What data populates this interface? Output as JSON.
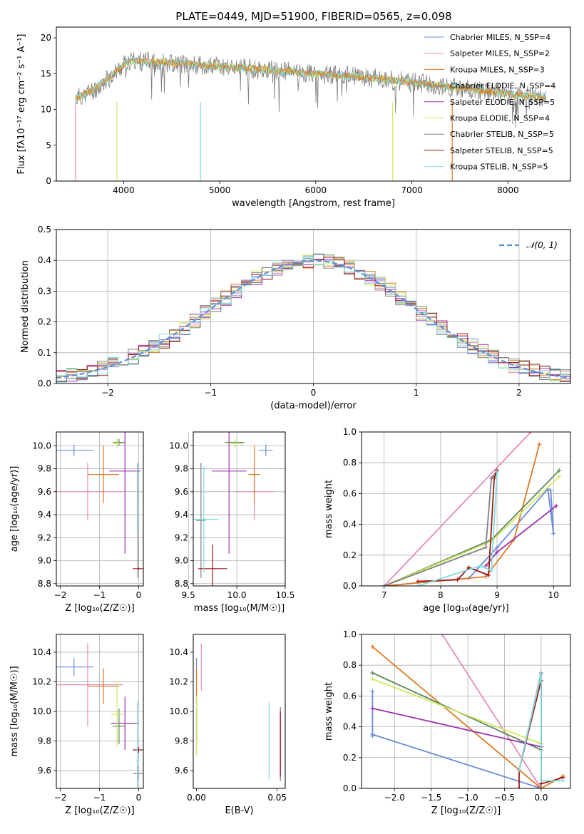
{
  "colors": {
    "series": [
      "#5B8BD8",
      "#E68BB8",
      "#E07B2A",
      "#F07020",
      "#A030B8",
      "#C8E070",
      "#707070",
      "#A01818",
      "#80D8D8"
    ],
    "model": [
      "#6A8CDA",
      "#E58BBC",
      "#E07A24",
      "#5E8A5A",
      "#9A32B0",
      "#D0E860",
      "#808080",
      "#A01818",
      "#80DDDD"
    ],
    "normal": "#5B8FD8"
  },
  "chart_data": [
    {
      "type": "line",
      "title": "PLATE=0449, MJD=51900, FIBERID=0565, z=0.098",
      "xlabel": "wavelength [Angstrom, rest frame]",
      "ylabel": "Flux [fλ10⁻¹⁷ erg cm⁻² s⁻¹ A⁻¹]",
      "xlim": [
        3300,
        8650
      ],
      "ylim": [
        0,
        21.5
      ],
      "xticks": [
        "4000",
        "5000",
        "6000",
        "7000",
        "8000"
      ],
      "yticks": [
        "0",
        "5",
        "10",
        "15",
        "20"
      ],
      "legend_position": "top-right",
      "legend": [
        "Chabrier MILES, N_SSP=4",
        "Salpeter MILES, N_SSP=2",
        "Kroupa MILES, N_SSP=3",
        "Chabrier ELODIE, N_SSP=4",
        "Salpeter ELODIE, N_SSP=5",
        "Kroupa ELODIE, N_SSP=4",
        "Chabrier STELIB, N_SSP=5",
        "Salpeter STELIB, N_SSP=5",
        "Kroupa STELIB, N_SSP=5"
      ],
      "continuum": {
        "x": [
          3500,
          3700,
          3900,
          4050,
          4500,
          5000,
          5500,
          6000,
          6500,
          7000,
          7500,
          8000,
          8400
        ],
        "y": [
          11.5,
          12.8,
          15.0,
          16.8,
          16.5,
          16.0,
          15.5,
          15.0,
          14.5,
          13.8,
          13.0,
          12.2,
          11.6
        ]
      }
    },
    {
      "type": "histogram",
      "xlabel": "(data-model)/error",
      "ylabel": "Normed distribution",
      "xlim": [
        -2.5,
        2.5
      ],
      "ylim": [
        0,
        0.5
      ],
      "xticks": [
        "−2",
        "−1",
        "0",
        "1",
        "2"
      ],
      "yticks": [
        "0.0",
        "0.1",
        "0.2",
        "0.3",
        "0.4",
        "0.5"
      ],
      "legend_position": "top-right",
      "legend": [
        "𝒩(0, 1)"
      ],
      "bin_width": 0.1
    },
    {
      "type": "scatter",
      "xlabel": "Z [log₁₀(Z/Z☉)]",
      "ylabel": "age  [log₁₀(age/yr)]",
      "xlim": [
        -2.1,
        0.12
      ],
      "ylim": [
        8.78,
        10.12
      ],
      "xticks": [
        "−2",
        "−1",
        "0"
      ],
      "yticks": [
        "8.8",
        "9.0",
        "9.2",
        "9.4",
        "9.6",
        "9.8",
        "10.0"
      ],
      "points": [
        {
          "x": -1.65,
          "y": 9.96,
          "xerr": 0.5,
          "yerr": 0.05
        },
        {
          "x": -1.3,
          "y": 9.6,
          "xerr": 0.9,
          "yerr": 0.25
        },
        {
          "x": -0.9,
          "y": 9.75,
          "xerr": 0.4,
          "yerr": 0.25
        },
        {
          "x": -0.5,
          "y": 10.03,
          "xerr": 0.15,
          "yerr": 0.03
        },
        {
          "x": -0.35,
          "y": 9.78,
          "xerr": 0.4,
          "yerr": 0.72
        },
        {
          "x": -0.55,
          "y": 10.02,
          "xerr": 0.15,
          "yerr": 0.04
        },
        {
          "x": -0.02,
          "y": 9.35,
          "xerr": 0.02,
          "yerr": 0.5
        },
        {
          "x": 0.0,
          "y": 8.93,
          "xerr": 0.15,
          "yerr": 0.01
        },
        {
          "x": -0.03,
          "y": 9.55,
          "xerr": 0.02,
          "yerr": 0.3
        }
      ]
    },
    {
      "type": "scatter",
      "xlabel": "mass [log₁₀(M/M☉)]",
      "ylabel": "",
      "xlim": [
        9.55,
        10.5
      ],
      "ylim": [
        8.78,
        10.12
      ],
      "xticks": [
        "9.5",
        "10.0",
        "10.5"
      ],
      "yticks": [
        "8.8",
        "9.0",
        "9.2",
        "9.4",
        "9.6",
        "9.8",
        "10.0"
      ],
      "points": [
        {
          "x": 10.3,
          "y": 9.96,
          "xerr": 0.07,
          "yerr": 0.05
        },
        {
          "x": 10.18,
          "y": 9.6,
          "xerr": 0.2,
          "yerr": 0.25
        },
        {
          "x": 10.18,
          "y": 9.75,
          "xerr": 0.06,
          "yerr": 0.25
        },
        {
          "x": 9.98,
          "y": 10.03,
          "xerr": 0.1,
          "yerr": 0.03
        },
        {
          "x": 9.92,
          "y": 9.78,
          "xerr": 0.18,
          "yerr": 0.72
        },
        {
          "x": 9.98,
          "y": 10.02,
          "xerr": 0.08,
          "yerr": 0.04
        },
        {
          "x": 9.63,
          "y": 9.35,
          "xerr": 0.05,
          "yerr": 0.5
        },
        {
          "x": 9.75,
          "y": 8.93,
          "xerr": 0.15,
          "yerr": 0.21
        },
        {
          "x": 9.66,
          "y": 9.36,
          "xerr": 0.15,
          "yerr": 0.46
        }
      ]
    },
    {
      "type": "line",
      "xlabel": "age  [log₁₀(age/yr)]",
      "ylabel": "mass weight",
      "xlim": [
        6.6,
        10.3
      ],
      "ylim": [
        0,
        1.0
      ],
      "xticks": [
        "7",
        "8",
        "9",
        "10"
      ],
      "yticks": [
        "0.0",
        "0.2",
        "0.4",
        "0.6",
        "0.8",
        "1.0"
      ],
      "series": [
        {
          "x": [
            7.0,
            8.5,
            9.0,
            9.9,
            10.0,
            9.95
          ],
          "y": [
            0.0,
            0.05,
            0.25,
            0.63,
            0.34,
            0.62
          ]
        },
        {
          "x": [
            7.0,
            9.6
          ],
          "y": [
            0.0,
            1.0
          ]
        },
        {
          "x": [
            7.0,
            8.8,
            9.3,
            9.75
          ],
          "y": [
            0.0,
            0.06,
            0.3,
            0.92
          ]
        },
        {
          "x": [
            7.0,
            8.9,
            10.1
          ],
          "y": [
            0.0,
            0.3,
            0.75
          ]
        },
        {
          "x": [
            8.8,
            9.0,
            10.05
          ],
          "y": [
            0.13,
            0.22,
            0.52
          ]
        },
        {
          "x": [
            7.0,
            8.9,
            10.1
          ],
          "y": [
            0.0,
            0.29,
            0.71
          ]
        },
        {
          "x": [
            7.0,
            8.8,
            8.9,
            9.0
          ],
          "y": [
            0.0,
            0.25,
            0.7,
            0.75
          ]
        },
        {
          "x": [
            7.6,
            8.3,
            8.5,
            8.85,
            8.95,
            9.0
          ],
          "y": [
            0.03,
            0.04,
            0.12,
            0.07,
            0.7,
            0.75
          ]
        },
        {
          "x": [
            7.6,
            8.7,
            8.9,
            9.0
          ],
          "y": [
            0.0,
            0.13,
            0.1,
            0.74
          ]
        }
      ]
    },
    {
      "type": "scatter",
      "xlabel": "Z [log₁₀(Z/Z☉)]",
      "ylabel": "mass [log₁₀(M/M☉)]",
      "xlim": [
        -2.1,
        0.12
      ],
      "ylim": [
        9.48,
        10.52
      ],
      "xticks": [
        "−2",
        "−1",
        "0"
      ],
      "yticks": [
        "9.6",
        "9.8",
        "10.0",
        "10.2",
        "10.4"
      ],
      "points": [
        {
          "x": -1.65,
          "y": 10.3,
          "xerr": 0.5,
          "yerr": 0.06
        },
        {
          "x": -1.3,
          "y": 10.18,
          "xerr": 0.9,
          "yerr": 0.28
        },
        {
          "x": -0.9,
          "y": 10.17,
          "xerr": 0.4,
          "yerr": 0.12
        },
        {
          "x": -0.5,
          "y": 9.9,
          "xerr": 0.15,
          "yerr": 0.12
        },
        {
          "x": -0.35,
          "y": 9.92,
          "xerr": 0.35,
          "yerr": 0.18
        },
        {
          "x": -0.55,
          "y": 9.98,
          "xerr": 0.15,
          "yerr": 0.22
        },
        {
          "x": -0.02,
          "y": 9.58,
          "xerr": 0.12,
          "yerr": 0.05
        },
        {
          "x": 0.0,
          "y": 9.74,
          "xerr": 0.15,
          "yerr": 0.02
        },
        {
          "x": -0.03,
          "y": 9.67,
          "xerr": 0.05,
          "yerr": 0.4
        }
      ]
    },
    {
      "type": "scatter",
      "xlabel": "E(B-V)",
      "ylabel": "",
      "xlim": [
        -0.002,
        0.055
      ],
      "ylim": [
        9.48,
        10.52
      ],
      "xticks": [
        "0.00",
        "0.05"
      ],
      "yticks": [
        "9.6",
        "9.8",
        "10.0",
        "10.2",
        "10.4"
      ],
      "points": [
        {
          "x": 0.0,
          "y": 10.3,
          "yerr": 0.06
        },
        {
          "x": 0.003,
          "y": 10.3,
          "yerr": 0.16
        },
        {
          "x": 0.0,
          "y": 10.17,
          "yerr": 0.12
        },
        {
          "x": 0.0,
          "y": 9.9,
          "yerr": 0.12
        },
        {
          "x": 0.0,
          "y": 9.92,
          "yerr": 0.18
        },
        {
          "x": 0.0,
          "y": 9.9,
          "yerr": 0.2
        },
        {
          "x": 0.052,
          "y": 9.78,
          "yerr": 0.25
        },
        {
          "x": 0.052,
          "y": 9.78,
          "yerr": 0.22
        },
        {
          "x": 0.045,
          "y": 9.8,
          "yerr": 0.26
        }
      ]
    },
    {
      "type": "line",
      "xlabel": "Z [log₁₀(Z/Z☉)]",
      "ylabel": "mass weight",
      "xlim": [
        -2.45,
        0.4
      ],
      "ylim": [
        0,
        1.0
      ],
      "xticks": [
        "−2.0",
        "−1.5",
        "−1.0",
        "−0.5",
        "0.0"
      ],
      "yticks": [
        "0.0",
        "0.2",
        "0.4",
        "0.6",
        "0.8",
        "1.0"
      ],
      "series": [
        {
          "x": [
            -2.3,
            -2.3,
            -2.3,
            0.0
          ],
          "y": [
            0.63,
            0.34,
            0.35,
            0.0
          ]
        },
        {
          "x": [
            -1.35,
            0.0
          ],
          "y": [
            1.0,
            0.0
          ]
        },
        {
          "x": [
            -2.3,
            0.0,
            0.3
          ],
          "y": [
            0.92,
            0.0,
            0.08
          ]
        },
        {
          "x": [
            -2.3,
            0.0
          ],
          "y": [
            0.75,
            0.25
          ]
        },
        {
          "x": [
            -2.3,
            0.0
          ],
          "y": [
            0.52,
            0.27
          ]
        },
        {
          "x": [
            -2.3,
            0.0
          ],
          "y": [
            0.71,
            0.29
          ]
        },
        {
          "x": [
            -0.3,
            0.0,
            0.0
          ],
          "y": [
            0.12,
            0.75,
            0.0
          ]
        },
        {
          "x": [
            -0.3,
            -0.3,
            0.0,
            0.0,
            0.3
          ],
          "y": [
            0.0,
            0.12,
            0.7,
            0.03,
            0.07
          ]
        },
        {
          "x": [
            -0.3,
            0.0,
            0.0,
            0.3
          ],
          "y": [
            0.12,
            0.74,
            0.05,
            0.05
          ]
        }
      ]
    }
  ]
}
